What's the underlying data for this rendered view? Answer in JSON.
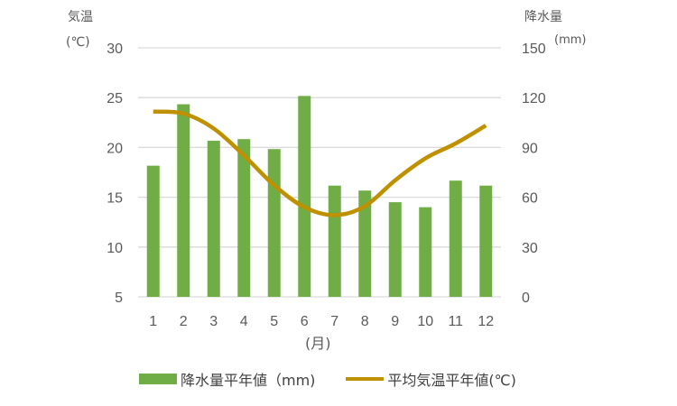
{
  "chart_data": {
    "type": "bar+line",
    "title": "",
    "categories": [
      "1",
      "2",
      "3",
      "4",
      "5",
      "6",
      "7",
      "8",
      "9",
      "10",
      "11",
      "12"
    ],
    "xlabel": "(月)",
    "y_left": {
      "label_line1": "気温",
      "label_line2": "(℃)",
      "ticks": [
        5,
        10,
        15,
        20,
        25,
        30
      ],
      "range": [
        5,
        30
      ]
    },
    "y_right": {
      "label_line1": "降水量",
      "label_line2": "(mm)",
      "ticks": [
        0,
        30,
        60,
        90,
        120,
        150
      ],
      "range": [
        0,
        150
      ]
    },
    "series": [
      {
        "name": "降水量平年値（mm)",
        "type": "bar",
        "axis": "right",
        "color": "#70AD47",
        "values": [
          79,
          116,
          94,
          95,
          89,
          121,
          67,
          64,
          57,
          54,
          70,
          67
        ]
      },
      {
        "name": "平均気温平年値(℃)",
        "type": "line",
        "axis": "left",
        "color": "#BF9000",
        "values": [
          23.6,
          23.4,
          21.9,
          19.2,
          16.2,
          14.0,
          13.2,
          14.1,
          16.7,
          18.9,
          20.4,
          22.2
        ]
      }
    ],
    "grid": true,
    "legend_position": "bottom"
  },
  "axes": {
    "left_title_1": "気温",
    "left_title_2": "(℃)",
    "right_title_1": "降水量",
    "right_title_2": "(mm)",
    "x_title": "(月)"
  },
  "legend": {
    "bar_label": "降水量平年値（mm)",
    "line_label": "平均気温平年値(℃)",
    "bar_color": "#70AD47",
    "line_color": "#BF9000"
  }
}
